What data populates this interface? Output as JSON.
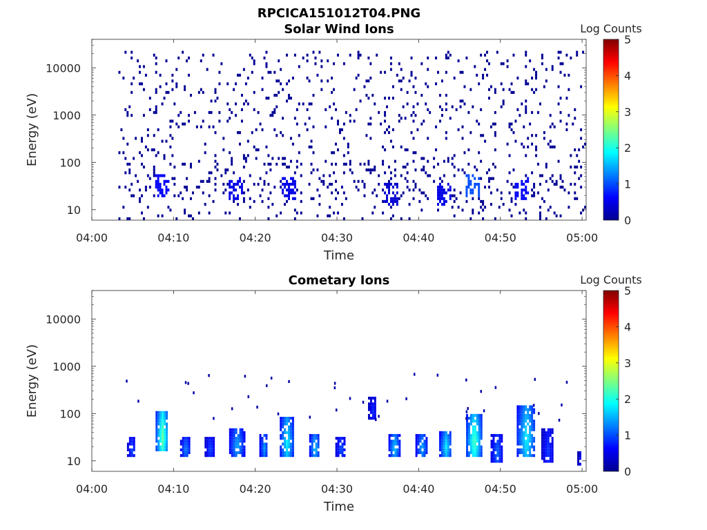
{
  "figure_title": "RPCICA151012T04.PNG",
  "chart_data": [
    {
      "type": "heatmap",
      "title": "Solar Wind Ions",
      "xlabel": "Time",
      "ylabel": "Energy (eV)",
      "x_ticks": [
        "04:00",
        "04:10",
        "04:20",
        "04:30",
        "04:40",
        "04:50",
        "05:00"
      ],
      "xlim_minutes": [
        0,
        60.5
      ],
      "y_scale": "log",
      "ylim": [
        6,
        40000
      ],
      "y_ticks": [
        10,
        100,
        1000,
        10000
      ],
      "y_tick_labels": [
        "10",
        "100",
        "1000",
        "10000"
      ],
      "colorbar": {
        "label": "Log Counts",
        "range": [
          0,
          5
        ],
        "ticks": [
          "0",
          "1",
          "2",
          "3",
          "4",
          "5"
        ],
        "colormap": "jet"
      },
      "description_values": {
        "data_start_minute": 3,
        "background_level_log_counts": 0.1,
        "scatter_energy_range_eV": [
          100,
          20000
        ],
        "dense_low_energy_clusters": [
          {
            "t": 8.5,
            "e": 30,
            "v": 0.6
          },
          {
            "t": 17.5,
            "e": 25,
            "v": 0.5
          },
          {
            "t": 24.0,
            "e": 25,
            "v": 0.5
          },
          {
            "t": 36.5,
            "e": 20,
            "v": 0.4
          },
          {
            "t": 43.0,
            "e": 20,
            "v": 0.5
          },
          {
            "t": 46.5,
            "e": 30,
            "v": 1.0
          },
          {
            "t": 52.5,
            "e": 25,
            "v": 0.6
          }
        ]
      }
    },
    {
      "type": "heatmap",
      "title": "Cometary Ions",
      "xlabel": "Time",
      "ylabel": "Energy (eV)",
      "x_ticks": [
        "04:00",
        "04:10",
        "04:20",
        "04:30",
        "04:40",
        "04:50",
        "05:00"
      ],
      "xlim_minutes": [
        0,
        60.5
      ],
      "y_scale": "log",
      "ylim": [
        6,
        40000
      ],
      "y_ticks": [
        10,
        100,
        1000,
        10000
      ],
      "y_tick_labels": [
        "10",
        "100",
        "1000",
        "10000"
      ],
      "colorbar": {
        "label": "Log Counts",
        "range": [
          0,
          5
        ],
        "ticks": [
          "0",
          "1",
          "2",
          "3",
          "4",
          "5"
        ],
        "colormap": "jet"
      },
      "bursts": [
        {
          "t0": 4.3,
          "t1": 5.3,
          "emin": 12,
          "emax": 28,
          "peak": 1.0
        },
        {
          "t0": 7.8,
          "t1": 9.3,
          "emin": 15,
          "emax": 110,
          "peak": 2.4
        },
        {
          "t0": 10.8,
          "t1": 12.0,
          "emin": 12,
          "emax": 28,
          "peak": 1.3
        },
        {
          "t0": 13.8,
          "t1": 15.0,
          "emin": 12,
          "emax": 30,
          "peak": 1.0
        },
        {
          "t0": 16.8,
          "t1": 18.6,
          "emin": 12,
          "emax": 45,
          "peak": 1.5
        },
        {
          "t0": 20.5,
          "t1": 21.5,
          "emin": 12,
          "emax": 35,
          "peak": 1.4
        },
        {
          "t0": 23.0,
          "t1": 24.6,
          "emin": 12,
          "emax": 80,
          "peak": 1.9
        },
        {
          "t0": 26.6,
          "t1": 27.8,
          "emin": 12,
          "emax": 35,
          "peak": 1.7
        },
        {
          "t0": 29.8,
          "t1": 31.0,
          "emin": 12,
          "emax": 30,
          "peak": 1.1
        },
        {
          "t0": 33.8,
          "t1": 34.8,
          "emin": 70,
          "emax": 200,
          "peak": 0.8
        },
        {
          "t0": 36.3,
          "t1": 37.6,
          "emin": 12,
          "emax": 35,
          "peak": 1.7
        },
        {
          "t0": 39.6,
          "t1": 41.0,
          "emin": 12,
          "emax": 35,
          "peak": 1.5
        },
        {
          "t0": 42.5,
          "t1": 44.0,
          "emin": 12,
          "emax": 40,
          "peak": 1.8
        },
        {
          "t0": 45.8,
          "t1": 47.6,
          "emin": 12,
          "emax": 90,
          "peak": 2.3
        },
        {
          "t0": 48.8,
          "t1": 50.2,
          "emin": 8,
          "emax": 35,
          "peak": 1.2
        },
        {
          "t0": 52.0,
          "t1": 54.2,
          "emin": 12,
          "emax": 140,
          "peak": 1.9
        },
        {
          "t0": 55.0,
          "t1": 56.5,
          "emin": 8,
          "emax": 45,
          "peak": 0.9
        },
        {
          "t0": 59.4,
          "t1": 59.9,
          "emin": 7,
          "emax": 15,
          "peak": 0.6
        }
      ]
    }
  ]
}
